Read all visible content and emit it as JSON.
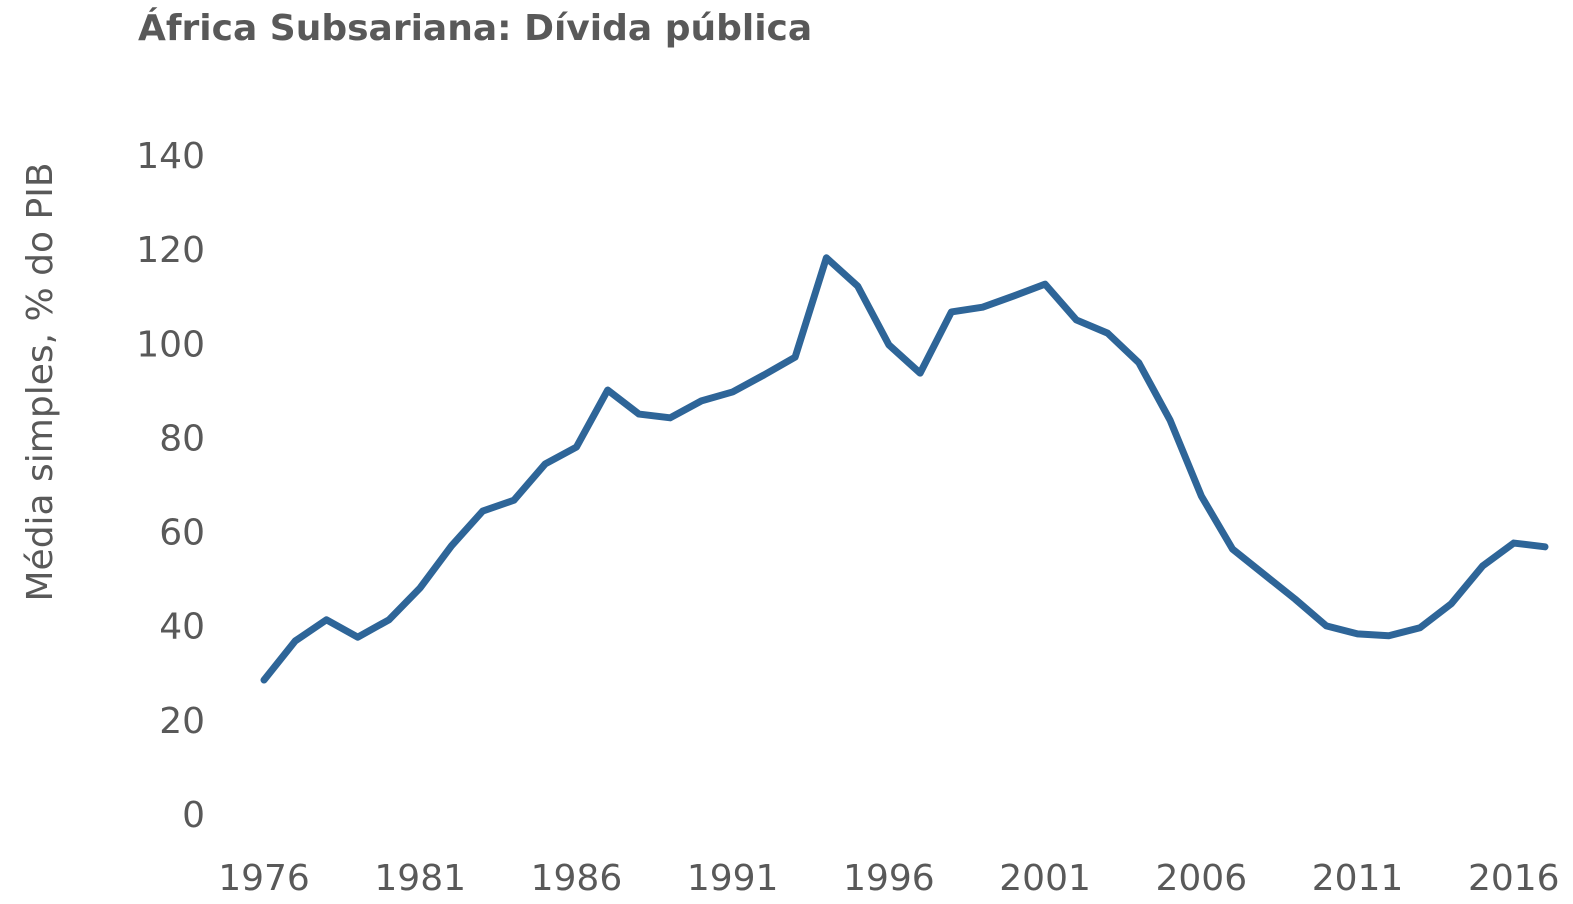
{
  "chart_data": {
    "type": "line",
    "title": "África Subsariana: Dívida pública",
    "ylabel": "Média simples,  % do PIB",
    "x": [
      1976,
      1977,
      1978,
      1979,
      1980,
      1981,
      1982,
      1983,
      1984,
      1985,
      1986,
      1987,
      1988,
      1989,
      1990,
      1991,
      1992,
      1993,
      1994,
      1995,
      1996,
      1997,
      1998,
      1999,
      2000,
      2001,
      2002,
      2003,
      2004,
      2005,
      2006,
      2007,
      2008,
      2009,
      2010,
      2011,
      2012,
      2013,
      2014,
      2015,
      2016,
      2017
    ],
    "series": [
      {
        "name": "Dívida pública",
        "color": "#2e6598",
        "values": [
          29.1,
          37.4,
          41.9,
          38.2,
          41.9,
          48.7,
          57.6,
          65.0,
          67.3,
          75.0,
          78.6,
          90.7,
          85.6,
          84.8,
          88.4,
          90.3,
          93.9,
          97.7,
          118.8,
          112.8,
          100.3,
          94.3,
          107.3,
          108.3,
          110.7,
          113.2,
          105.6,
          102.8,
          96.5,
          84.3,
          68.2,
          56.9,
          51.6,
          46.3,
          40.6,
          38.9,
          38.5,
          40.2,
          45.3,
          53.3,
          58.2,
          57.4
        ]
      }
    ],
    "xlim": [
      1976,
      2017
    ],
    "xticks": [
      1976,
      1981,
      1986,
      1991,
      1996,
      2001,
      2006,
      2011,
      2016
    ],
    "ylim": [
      0,
      140
    ],
    "yticks": [
      0,
      20,
      40,
      60,
      80,
      100,
      120,
      140
    ],
    "grid": false
  }
}
